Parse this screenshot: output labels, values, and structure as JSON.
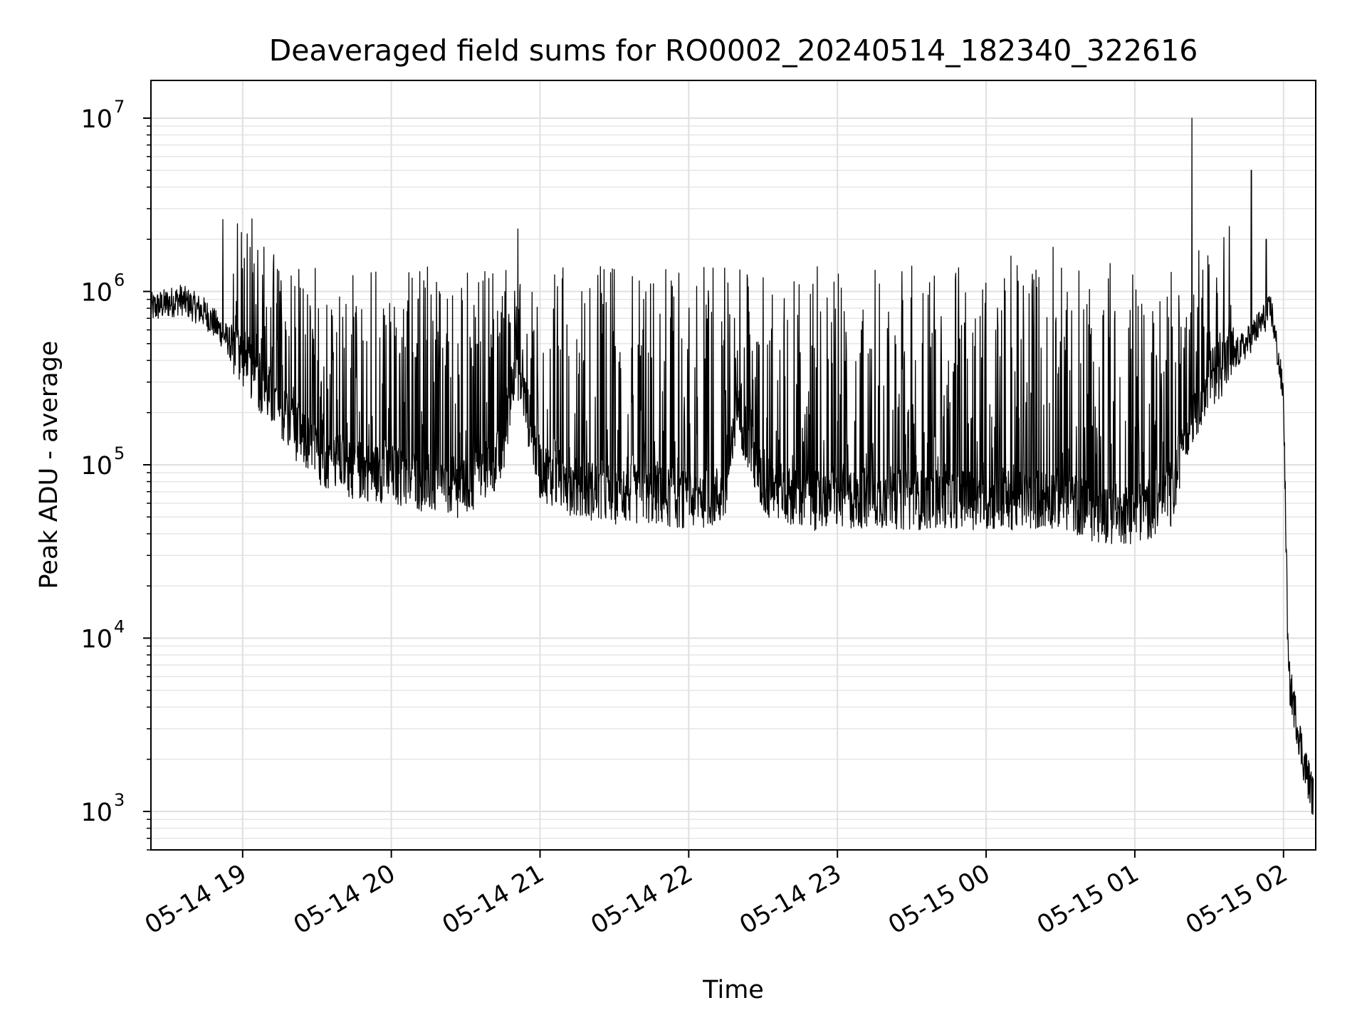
{
  "chart_data": {
    "type": "line",
    "title": "Deaveraged field sums for RO0002_20240514_182340_322616",
    "xlabel": "Time",
    "ylabel": "Peak ADU - average",
    "yscale": "log",
    "ylim": [
      600,
      16500000
    ],
    "xlim": [
      "2024-05-14 18:23",
      "2024-05-15 02:13"
    ],
    "grid": true,
    "line_color": "#000000",
    "x_ticks": [
      {
        "t": "2024-05-14 19:00",
        "label": "05-14 19"
      },
      {
        "t": "2024-05-14 20:00",
        "label": "05-14 20"
      },
      {
        "t": "2024-05-14 21:00",
        "label": "05-14 21"
      },
      {
        "t": "2024-05-14 22:00",
        "label": "05-14 22"
      },
      {
        "t": "2024-05-14 23:00",
        "label": "05-14 23"
      },
      {
        "t": "2024-05-15 00:00",
        "label": "05-15 00"
      },
      {
        "t": "2024-05-15 01:00",
        "label": "05-15 01"
      },
      {
        "t": "2024-05-15 02:00",
        "label": "05-15 02"
      }
    ],
    "y_ticks": [
      {
        "value": 1000,
        "base": "10",
        "exp": "3"
      },
      {
        "value": 10000,
        "base": "10",
        "exp": "4"
      },
      {
        "value": 100000,
        "base": "10",
        "exp": "5"
      },
      {
        "value": 1000000,
        "base": "10",
        "exp": "6"
      },
      {
        "value": 10000000,
        "base": "10",
        "exp": "7"
      }
    ],
    "series": [
      {
        "x": [
          "2024-05-14 18:23",
          "2024-05-14 18:35",
          "2024-05-14 18:45",
          "2024-05-14 18:53",
          "2024-05-14 19:00",
          "2024-05-14 19:10",
          "2024-05-14 19:20",
          "2024-05-14 19:30",
          "2024-05-14 19:45",
          "2024-05-14 20:00",
          "2024-05-14 20:15",
          "2024-05-14 20:30",
          "2024-05-14 20:45",
          "2024-05-14 20:50",
          "2024-05-14 21:00",
          "2024-05-14 21:15",
          "2024-05-14 21:30",
          "2024-05-14 21:45",
          "2024-05-14 22:00",
          "2024-05-14 22:15",
          "2024-05-14 22:20",
          "2024-05-14 22:30",
          "2024-05-14 22:45",
          "2024-05-14 23:00",
          "2024-05-14 23:15",
          "2024-05-14 23:30",
          "2024-05-14 23:45",
          "2024-05-15 00:00",
          "2024-05-15 00:15",
          "2024-05-15 00:30",
          "2024-05-15 00:45",
          "2024-05-15 01:00",
          "2024-05-15 01:15",
          "2024-05-15 01:20",
          "2024-05-15 01:30",
          "2024-05-15 01:45",
          "2024-05-15 01:55",
          "2024-05-15 02:00",
          "2024-05-15 02:02",
          "2024-05-15 02:05",
          "2024-05-15 02:08",
          "2024-05-15 02:12"
        ],
        "y": [
          800000,
          900000,
          750000,
          550000,
          400000,
          250000,
          160000,
          110000,
          90000,
          85000,
          75000,
          70000,
          110000,
          400000,
          90000,
          70000,
          65000,
          65000,
          60000,
          65000,
          200000,
          70000,
          60000,
          60000,
          62000,
          60000,
          62000,
          60000,
          60000,
          62000,
          50000,
          50000,
          60000,
          150000,
          300000,
          500000,
          800000,
          250000,
          6000,
          3500,
          2000,
          1200
        ],
        "spikes": [
          {
            "t": "2024-05-14 18:52",
            "y": 2600000
          },
          {
            "t": "2024-05-14 19:15",
            "y": 1000000
          },
          {
            "t": "2024-05-14 20:37",
            "y": 1150000
          },
          {
            "t": "2024-05-14 20:52",
            "y": 1100000
          },
          {
            "t": "2024-05-14 21:40",
            "y": 1150000
          },
          {
            "t": "2024-05-14 21:53",
            "y": 1150000
          },
          {
            "t": "2024-05-14 22:30",
            "y": 1200000
          },
          {
            "t": "2024-05-14 23:30",
            "y": 1400000
          },
          {
            "t": "2024-05-15 00:10",
            "y": 1600000
          },
          {
            "t": "2024-05-15 00:27",
            "y": 1800000
          },
          {
            "t": "2024-05-15 00:50",
            "y": 1450000
          },
          {
            "t": "2024-05-15 01:23",
            "y": 10000000
          },
          {
            "t": "2024-05-15 01:47",
            "y": 5000000
          },
          {
            "t": "2024-05-15 01:53",
            "y": 2000000
          }
        ]
      }
    ]
  }
}
